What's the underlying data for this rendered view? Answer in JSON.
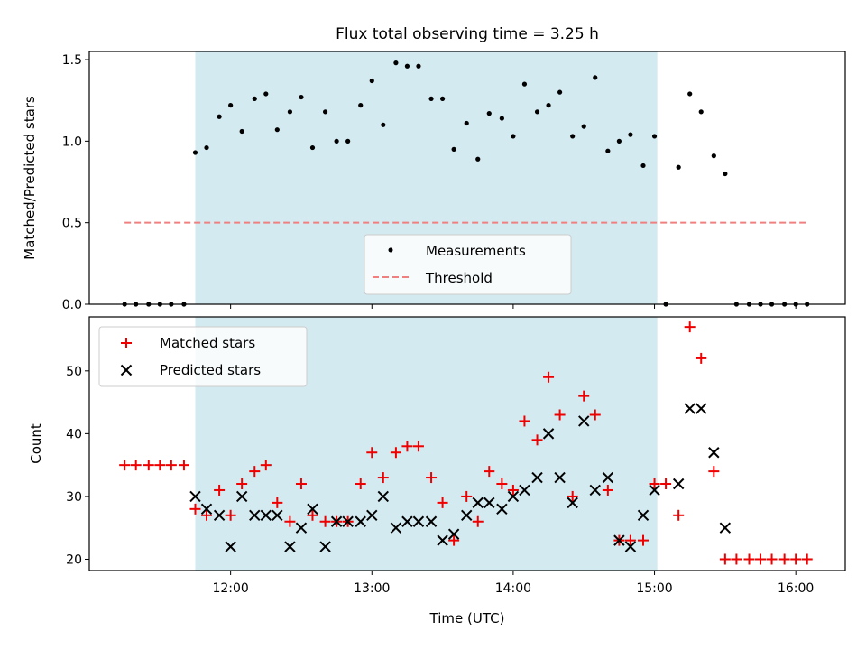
{
  "chart_data": [
    {
      "type": "scatter",
      "title": "Flux total observing time = 3.25 h",
      "ylabel": "Matched/Predicted stars",
      "xlabel": "",
      "x_unit": "hours UTC",
      "xlim": [
        11.0,
        16.35
      ],
      "ylim": [
        0.0,
        1.55
      ],
      "yticks": [
        0.0,
        0.5,
        1.0,
        1.5
      ],
      "ytick_labels": [
        "0.0",
        "0.5",
        "1.0",
        "1.5"
      ],
      "shaded_region": {
        "x_start": 11.75,
        "x_end": 15.02,
        "color": "#d4eaf1"
      },
      "legend": {
        "placement": "lower center",
        "entries": [
          "Measurements",
          "Threshold"
        ]
      },
      "series": [
        {
          "name": "Measurements",
          "marker": "dot",
          "color": "#000000",
          "points": [
            [
              11.25,
              0.0
            ],
            [
              11.33,
              0.0
            ],
            [
              11.42,
              0.0
            ],
            [
              11.5,
              0.0
            ],
            [
              11.58,
              0.0
            ],
            [
              11.67,
              0.0
            ],
            [
              11.75,
              0.93
            ],
            [
              11.83,
              0.96
            ],
            [
              11.92,
              1.15
            ],
            [
              12.0,
              1.22
            ],
            [
              12.08,
              1.06
            ],
            [
              12.17,
              1.26
            ],
            [
              12.25,
              1.29
            ],
            [
              12.33,
              1.07
            ],
            [
              12.42,
              1.18
            ],
            [
              12.5,
              1.27
            ],
            [
              12.58,
              0.96
            ],
            [
              12.67,
              1.18
            ],
            [
              12.75,
              1.0
            ],
            [
              12.83,
              1.0
            ],
            [
              12.92,
              1.22
            ],
            [
              13.0,
              1.37
            ],
            [
              13.08,
              1.1
            ],
            [
              13.17,
              1.48
            ],
            [
              13.25,
              1.46
            ],
            [
              13.33,
              1.46
            ],
            [
              13.42,
              1.26
            ],
            [
              13.5,
              1.26
            ],
            [
              13.58,
              0.95
            ],
            [
              13.67,
              1.11
            ],
            [
              13.75,
              0.89
            ],
            [
              13.83,
              1.17
            ],
            [
              13.92,
              1.14
            ],
            [
              14.0,
              1.03
            ],
            [
              14.08,
              1.35
            ],
            [
              14.17,
              1.18
            ],
            [
              14.25,
              1.22
            ],
            [
              14.33,
              1.3
            ],
            [
              14.42,
              1.03
            ],
            [
              14.5,
              1.09
            ],
            [
              14.58,
              1.39
            ],
            [
              14.67,
              0.94
            ],
            [
              14.75,
              1.0
            ],
            [
              14.83,
              1.04
            ],
            [
              14.92,
              0.85
            ],
            [
              15.0,
              1.03
            ],
            [
              15.08,
              0.0
            ],
            [
              15.17,
              0.84
            ],
            [
              15.25,
              1.29
            ],
            [
              15.33,
              1.18
            ],
            [
              15.42,
              0.91
            ],
            [
              15.5,
              0.8
            ],
            [
              15.58,
              0.0
            ],
            [
              15.67,
              0.0
            ],
            [
              15.75,
              0.0
            ],
            [
              15.83,
              0.0
            ],
            [
              15.92,
              0.0
            ],
            [
              16.0,
              0.0
            ],
            [
              16.08,
              0.0
            ]
          ]
        },
        {
          "name": "Threshold",
          "type": "line",
          "style": "dashed",
          "color": "#f08080",
          "points": [
            [
              11.25,
              0.5
            ],
            [
              16.08,
              0.5
            ]
          ]
        }
      ]
    },
    {
      "type": "scatter",
      "title": "",
      "xlabel": "Time (UTC)",
      "ylabel": "Count",
      "x_unit": "hours UTC",
      "xlim": [
        11.0,
        16.35
      ],
      "ylim": [
        18.2,
        58.6
      ],
      "yticks": [
        20,
        30,
        40,
        50
      ],
      "ytick_labels": [
        "20",
        "30",
        "40",
        "50"
      ],
      "xticks": [
        12,
        13,
        14,
        15,
        16
      ],
      "xtick_labels": [
        "12:00",
        "13:00",
        "14:00",
        "15:00",
        "16:00"
      ],
      "shaded_region": {
        "x_start": 11.75,
        "x_end": 15.02,
        "color": "#d4eaf1"
      },
      "legend": {
        "placement": "upper left",
        "entries": [
          "Matched stars",
          "Predicted stars"
        ]
      },
      "series": [
        {
          "name": "Matched stars",
          "marker": "plus",
          "color": "#ee0000",
          "points": [
            [
              11.25,
              35
            ],
            [
              11.33,
              35
            ],
            [
              11.42,
              35
            ],
            [
              11.5,
              35
            ],
            [
              11.58,
              35
            ],
            [
              11.67,
              35
            ],
            [
              11.75,
              28
            ],
            [
              11.83,
              27
            ],
            [
              11.92,
              31
            ],
            [
              12.0,
              27
            ],
            [
              12.08,
              32
            ],
            [
              12.17,
              34
            ],
            [
              12.25,
              35
            ],
            [
              12.33,
              29
            ],
            [
              12.42,
              26
            ],
            [
              12.5,
              32
            ],
            [
              12.58,
              27
            ],
            [
              12.67,
              26
            ],
            [
              12.75,
              26
            ],
            [
              12.83,
              26
            ],
            [
              12.92,
              32
            ],
            [
              13.0,
              37
            ],
            [
              13.08,
              33
            ],
            [
              13.17,
              37
            ],
            [
              13.25,
              38
            ],
            [
              13.33,
              38
            ],
            [
              13.42,
              33
            ],
            [
              13.5,
              29
            ],
            [
              13.58,
              23
            ],
            [
              13.67,
              30
            ],
            [
              13.75,
              26
            ],
            [
              13.83,
              34
            ],
            [
              13.92,
              32
            ],
            [
              14.0,
              31
            ],
            [
              14.08,
              42
            ],
            [
              14.17,
              39
            ],
            [
              14.25,
              49
            ],
            [
              14.33,
              43
            ],
            [
              14.42,
              30
            ],
            [
              14.5,
              46
            ],
            [
              14.58,
              43
            ],
            [
              14.67,
              31
            ],
            [
              14.75,
              23
            ],
            [
              14.83,
              23
            ],
            [
              14.92,
              23
            ],
            [
              15.0,
              32
            ],
            [
              15.08,
              32
            ],
            [
              15.17,
              27
            ],
            [
              15.25,
              57
            ],
            [
              15.33,
              52
            ],
            [
              15.42,
              34
            ],
            [
              15.5,
              20
            ],
            [
              15.58,
              20
            ],
            [
              15.67,
              20
            ],
            [
              15.75,
              20
            ],
            [
              15.83,
              20
            ],
            [
              15.92,
              20
            ],
            [
              16.0,
              20
            ],
            [
              16.08,
              20
            ]
          ]
        },
        {
          "name": "Predicted stars",
          "marker": "x",
          "color": "#000000",
          "points": [
            [
              11.75,
              30
            ],
            [
              11.83,
              28
            ],
            [
              11.92,
              27
            ],
            [
              12.0,
              22
            ],
            [
              12.08,
              30
            ],
            [
              12.17,
              27
            ],
            [
              12.25,
              27
            ],
            [
              12.33,
              27
            ],
            [
              12.42,
              22
            ],
            [
              12.5,
              25
            ],
            [
              12.58,
              28
            ],
            [
              12.67,
              22
            ],
            [
              12.75,
              26
            ],
            [
              12.83,
              26
            ],
            [
              12.92,
              26
            ],
            [
              13.0,
              27
            ],
            [
              13.08,
              30
            ],
            [
              13.17,
              25
            ],
            [
              13.25,
              26
            ],
            [
              13.33,
              26
            ],
            [
              13.42,
              26
            ],
            [
              13.5,
              23
            ],
            [
              13.58,
              24
            ],
            [
              13.67,
              27
            ],
            [
              13.75,
              29
            ],
            [
              13.83,
              29
            ],
            [
              13.92,
              28
            ],
            [
              14.0,
              30
            ],
            [
              14.08,
              31
            ],
            [
              14.17,
              33
            ],
            [
              14.25,
              40
            ],
            [
              14.33,
              33
            ],
            [
              14.42,
              29
            ],
            [
              14.5,
              42
            ],
            [
              14.58,
              31
            ],
            [
              14.67,
              33
            ],
            [
              14.75,
              23
            ],
            [
              14.83,
              22
            ],
            [
              14.92,
              27
            ],
            [
              15.0,
              31
            ],
            [
              15.17,
              32
            ],
            [
              15.25,
              44
            ],
            [
              15.33,
              44
            ],
            [
              15.42,
              37
            ],
            [
              15.5,
              25
            ]
          ]
        }
      ]
    }
  ]
}
